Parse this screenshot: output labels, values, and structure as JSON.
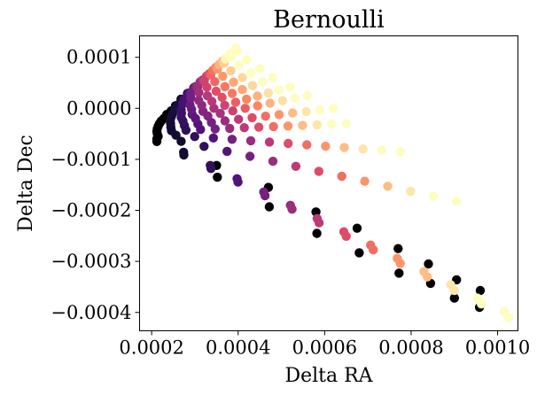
{
  "chart_data": {
    "type": "scatter",
    "title": "Bernoulli",
    "xlabel": "Delta RA",
    "ylabel": "Delta Dec",
    "xlim": [
      0.000172,
      0.001047
    ],
    "ylim": [
      -0.000436,
      0.000142
    ],
    "xticks": [
      {
        "value": 0.0002,
        "label": "0.0002"
      },
      {
        "value": 0.0004,
        "label": "0.0004"
      },
      {
        "value": 0.0006,
        "label": "0.0006"
      },
      {
        "value": 0.0008,
        "label": "0.0008"
      },
      {
        "value": 0.001,
        "label": "0.0010"
      }
    ],
    "yticks": [
      {
        "value": 0.0001,
        "label": "0.0001"
      },
      {
        "value": 0.0,
        "label": "0.0000"
      },
      {
        "value": -0.0001,
        "label": "−0.0001"
      },
      {
        "value": -0.0002,
        "label": "−0.0002"
      },
      {
        "value": -0.0003,
        "label": "−0.0003"
      },
      {
        "value": -0.0004,
        "label": "−0.0004"
      }
    ],
    "grid": false,
    "colormap": "magma",
    "colormap_range": [
      0.0,
      0.9
    ],
    "color_dimension": "normalized position along each radial track (0 = innermost, dark; 1 = outer tip, light)",
    "tracks": [
      {
        "start": [
          0.000212,
          -6.5e-05
        ],
        "end": [
          0.001025,
          -0.00041
        ],
        "n": 14
      },
      {
        "start": [
          0.000212,
          -6e-05
        ],
        "end": [
          0.001015,
          -0.000398
        ],
        "n": 14
      },
      {
        "start": [
          0.000215,
          -5.5e-05
        ],
        "end": [
          0.000905,
          -0.000182
        ],
        "n": 14
      },
      {
        "start": [
          0.000213,
          -5e-05
        ],
        "end": [
          0.000775,
          -8.5e-05
        ],
        "n": 14
      },
      {
        "start": [
          0.000212,
          -4.5e-05
        ],
        "end": [
          0.00065,
          -3e-05
        ],
        "n": 14
      },
      {
        "start": [
          0.000213,
          -4e-05
        ],
        "end": [
          0.00062,
          0.0
        ],
        "n": 14
      },
      {
        "start": [
          0.000215,
          -3.5e-05
        ],
        "end": [
          0.00056,
          2.5e-05
        ],
        "n": 13
      },
      {
        "start": [
          0.000218,
          -3e-05
        ],
        "end": [
          0.00052,
          4.2e-05
        ],
        "n": 13
      },
      {
        "start": [
          0.000222,
          -2.5e-05
        ],
        "end": [
          0.00048,
          6e-05
        ],
        "n": 12
      },
      {
        "start": [
          0.000228,
          -2e-05
        ],
        "end": [
          0.00045,
          7.8e-05
        ],
        "n": 12
      },
      {
        "start": [
          0.000235,
          -1.2e-05
        ],
        "end": [
          0.00042,
          9.5e-05
        ],
        "n": 11
      },
      {
        "start": [
          0.000245,
          -5e-06
        ],
        "end": [
          0.000398,
          0.000112
        ],
        "n": 11
      },
      {
        "start": [
          0.000255,
          5e-06
        ],
        "end": [
          0.000395,
          0.000118
        ],
        "n": 10
      },
      {
        "start": [
          0.000268,
          1.8e-05
        ],
        "end": [
          0.000385,
          0.000108
        ],
        "n": 9
      }
    ],
    "extra_points": [
      [
        0.00035,
        -0.000112
      ],
      [
        0.000352,
        -0.000135
      ],
      [
        0.00047,
        -0.000155
      ],
      [
        0.000472,
        -0.000193
      ],
      [
        0.00058,
        -0.000203
      ],
      [
        0.000582,
        -0.000245
      ],
      [
        0.000675,
        -0.000235
      ],
      [
        0.00068,
        -0.000283
      ],
      [
        0.00077,
        -0.000275
      ],
      [
        0.000772,
        -0.000323
      ],
      [
        0.00084,
        -0.000305
      ],
      [
        0.000845,
        -0.000343
      ],
      [
        0.000905,
        -0.000336
      ],
      [
        0.0009,
        -0.000372
      ],
      [
        0.00096,
        -0.000357
      ],
      [
        0.000958,
        -0.00039
      ]
    ]
  }
}
